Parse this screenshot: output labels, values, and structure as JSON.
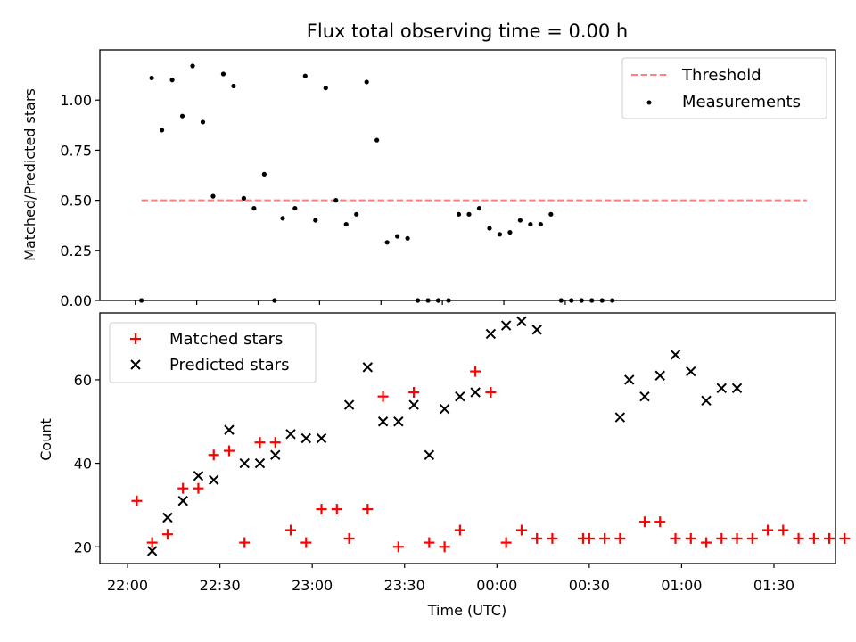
{
  "chart_data": [
    {
      "type": "scatter",
      "title": "Flux total observing time = 0.00 h",
      "xlabel": "",
      "ylabel": "Matched/Predicted stars",
      "x_unit": "minutes after 22:00 UTC",
      "xlim": [
        -17.3,
        342
      ],
      "ylim": [
        0,
        1.25
      ],
      "yticks": [
        0.0,
        0.25,
        0.5,
        0.75,
        1.0
      ],
      "ytick_labels": [
        "0.00",
        "0.25",
        "0.50",
        "0.75",
        "1.00"
      ],
      "xticks": [
        0,
        30,
        60,
        90,
        120,
        150,
        180,
        210
      ],
      "threshold": {
        "name": "Threshold",
        "value": 0.5,
        "x_range": [
          3,
          328
        ],
        "color": "#ff7f7f"
      },
      "series": [
        {
          "name": "Measurements",
          "color": "#000000",
          "x": [
            3,
            8,
            13,
            18,
            23,
            28,
            33,
            38,
            43,
            48,
            53,
            58,
            63,
            68,
            72,
            78,
            83,
            88,
            93,
            98,
            103,
            108,
            113,
            118,
            123,
            128,
            133,
            138,
            143,
            148,
            153,
            158,
            163,
            168,
            173,
            178,
            183,
            188,
            193,
            198,
            203,
            208,
            213,
            218,
            223,
            228,
            233
          ],
          "y": [
            0.0,
            1.11,
            0.85,
            1.1,
            0.92,
            1.17,
            0.89,
            0.52,
            1.13,
            1.07,
            0.51,
            0.46,
            0.63,
            0.0,
            0.41,
            0.46,
            1.12,
            0.4,
            1.06,
            0.5,
            0.38,
            0.43,
            1.09,
            0.8,
            0.29,
            0.32,
            0.31,
            0.0,
            0.0,
            0.0,
            0.0,
            0.43,
            0.43,
            0.46,
            0.36,
            0.33,
            0.34,
            0.4,
            0.38,
            0.38,
            0.43,
            0.0,
            0.0,
            0.0,
            0.0,
            0.0,
            0.0
          ]
        }
      ],
      "legend": {
        "position": "top-right",
        "entries": [
          "Threshold",
          "Measurements"
        ]
      }
    },
    {
      "type": "scatter",
      "title": "",
      "xlabel": "Time (UTC)",
      "ylabel": "Count",
      "x_unit": "minutes after 22:00 UTC",
      "xlim": [
        -9,
        230
      ],
      "ylim": [
        16,
        76
      ],
      "yticks": [
        20,
        40,
        60
      ],
      "ytick_labels": [
        "20",
        "40",
        "60"
      ],
      "xticks": [
        0,
        30,
        60,
        90,
        120,
        150,
        180,
        210
      ],
      "xtick_labels": [
        "22:00",
        "22:30",
        "23:00",
        "23:30",
        "00:00",
        "00:30",
        "01:00",
        "01:30"
      ],
      "series": [
        {
          "name": "Matched stars",
          "marker": "+",
          "color": "#ff0000",
          "x": [
            3,
            8,
            13,
            18,
            23,
            28,
            33,
            38,
            43,
            48,
            53,
            58,
            63,
            68,
            72,
            78,
            83,
            88,
            93,
            98,
            103,
            108,
            113,
            118,
            123,
            128,
            133,
            138,
            148,
            150,
            155,
            160,
            168,
            173,
            178,
            183,
            188,
            193,
            198,
            203,
            208,
            213,
            218,
            223,
            228,
            233
          ],
          "y": [
            31,
            21,
            23,
            34,
            34,
            42,
            43,
            21,
            45,
            45,
            24,
            21,
            29,
            29,
            22,
            29,
            56,
            20,
            57,
            21,
            20,
            24,
            62,
            57,
            21,
            24,
            22,
            22,
            22,
            22,
            22,
            22,
            26,
            26,
            22,
            22,
            21,
            22,
            22,
            22,
            24,
            24,
            22,
            22,
            22,
            22
          ]
        },
        {
          "name": "Predicted stars",
          "marker": "x",
          "color": "#000000",
          "x": [
            8,
            13,
            18,
            23,
            28,
            33,
            38,
            43,
            48,
            53,
            58,
            63,
            72,
            78,
            83,
            88,
            93,
            98,
            103,
            108,
            113,
            118,
            123,
            128,
            133,
            160,
            163,
            168,
            173,
            178,
            183,
            188,
            193,
            198
          ],
          "y": [
            19,
            27,
            31,
            37,
            36,
            48,
            40,
            40,
            42,
            47,
            46,
            46,
            54,
            63,
            50,
            50,
            54,
            42,
            53,
            56,
            57,
            71,
            73,
            74,
            72,
            51,
            60,
            56,
            61,
            66,
            62,
            55,
            58,
            58
          ]
        }
      ],
      "legend": {
        "position": "top-left",
        "entries": [
          "Matched stars",
          "Predicted stars"
        ]
      }
    }
  ]
}
